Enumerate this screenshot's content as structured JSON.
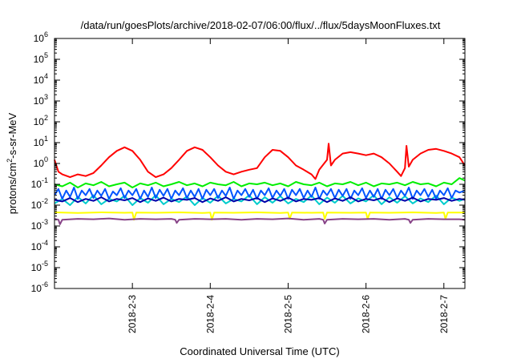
{
  "chart_data": {
    "type": "line",
    "title": "/data/run/goesPlots/archive/2018-02-07/06:00/flux/../flux/5daysMoonFluxes.txt",
    "xlabel": "Coordinated Universal Time (UTC)",
    "ylabel_main": "protons/cm",
    "ylabel_sup": "2",
    "ylabel_rest": "-s-sr-MeV",
    "y_scale": "log",
    "ylim": [
      1e-06,
      1000000
    ],
    "xlim": [
      2.0,
      7.27
    ],
    "grid": false,
    "legend": "none",
    "y_ticks": [
      {
        "value": 1e-06,
        "base": "10",
        "exp": "-6"
      },
      {
        "value": 1e-05,
        "base": "10",
        "exp": "-5"
      },
      {
        "value": 0.0001,
        "base": "10",
        "exp": "-4"
      },
      {
        "value": 0.001,
        "base": "10",
        "exp": "-3"
      },
      {
        "value": 0.01,
        "base": "10",
        "exp": "-2"
      },
      {
        "value": 0.1,
        "base": "10",
        "exp": "-1"
      },
      {
        "value": 1,
        "base": "10",
        "exp": "0"
      },
      {
        "value": 10,
        "base": "10",
        "exp": "1"
      },
      {
        "value": 100,
        "base": "10",
        "exp": "2"
      },
      {
        "value": 1000,
        "base": "10",
        "exp": "3"
      },
      {
        "value": 10000,
        "base": "10",
        "exp": "4"
      },
      {
        "value": 100000,
        "base": "10",
        "exp": "5"
      },
      {
        "value": 1000000,
        "base": "10",
        "exp": "6"
      }
    ],
    "x_ticks": [
      {
        "value": 3,
        "label": "2018-2-3"
      },
      {
        "value": 4,
        "label": "2018-2-4"
      },
      {
        "value": 5,
        "label": "2018-2-5"
      },
      {
        "value": 6,
        "label": "2018-2-6"
      },
      {
        "value": 7,
        "label": "2018-2-7"
      }
    ],
    "series": [
      {
        "color": "#ff0000",
        "x": [
          2.0,
          2.05,
          2.1,
          2.2,
          2.3,
          2.4,
          2.5,
          2.6,
          2.7,
          2.8,
          2.9,
          3.0,
          3.1,
          3.2,
          3.3,
          3.4,
          3.5,
          3.6,
          3.7,
          3.8,
          3.9,
          4.0,
          4.1,
          4.2,
          4.3,
          4.4,
          4.5,
          4.6,
          4.7,
          4.8,
          4.9,
          5.0,
          5.1,
          5.2,
          5.3,
          5.35,
          5.4,
          5.5,
          5.52,
          5.55,
          5.6,
          5.7,
          5.8,
          5.9,
          6.0,
          6.1,
          6.2,
          6.3,
          6.4,
          6.45,
          6.5,
          6.52,
          6.55,
          6.6,
          6.7,
          6.8,
          6.9,
          7.0,
          7.1,
          7.2,
          7.27
        ],
        "y": [
          1.5,
          0.4,
          0.3,
          0.22,
          0.3,
          0.25,
          0.35,
          0.8,
          2.0,
          4.0,
          6.0,
          4.0,
          1.5,
          0.4,
          0.22,
          0.3,
          0.6,
          1.5,
          4.0,
          6.0,
          4.5,
          2.0,
          0.8,
          0.4,
          0.3,
          0.4,
          0.5,
          0.6,
          2.0,
          4.5,
          4.0,
          2.0,
          0.8,
          0.5,
          0.3,
          0.18,
          0.5,
          1.5,
          9.0,
          0.8,
          1.5,
          3.0,
          3.5,
          3.0,
          2.5,
          3.0,
          2.0,
          1.0,
          0.4,
          0.25,
          0.6,
          7.0,
          0.7,
          1.5,
          3.0,
          4.5,
          5.0,
          4.0,
          3.0,
          2.0,
          0.8
        ]
      },
      {
        "color": "#00ee00",
        "x": [
          2.0,
          2.1,
          2.2,
          2.3,
          2.4,
          2.5,
          2.6,
          2.7,
          2.8,
          2.9,
          3.0,
          3.1,
          3.2,
          3.3,
          3.4,
          3.5,
          3.6,
          3.7,
          3.8,
          3.9,
          4.0,
          4.1,
          4.2,
          4.3,
          4.4,
          4.5,
          4.6,
          4.7,
          4.8,
          4.9,
          5.0,
          5.1,
          5.2,
          5.3,
          5.4,
          5.5,
          5.6,
          5.7,
          5.8,
          5.9,
          6.0,
          6.1,
          6.2,
          6.3,
          6.4,
          6.5,
          6.6,
          6.7,
          6.8,
          6.9,
          7.0,
          7.1,
          7.2,
          7.27
        ],
        "y": [
          0.1,
          0.08,
          0.12,
          0.07,
          0.11,
          0.09,
          0.13,
          0.08,
          0.1,
          0.12,
          0.07,
          0.11,
          0.09,
          0.12,
          0.08,
          0.1,
          0.13,
          0.09,
          0.11,
          0.08,
          0.12,
          0.1,
          0.09,
          0.13,
          0.08,
          0.11,
          0.1,
          0.12,
          0.09,
          0.11,
          0.08,
          0.13,
          0.1,
          0.09,
          0.12,
          0.08,
          0.11,
          0.1,
          0.13,
          0.09,
          0.12,
          0.08,
          0.11,
          0.1,
          0.12,
          0.09,
          0.13,
          0.1,
          0.11,
          0.08,
          0.12,
          0.1,
          0.2,
          0.15
        ]
      },
      {
        "color": "#00cccc",
        "x": [
          2.0,
          2.1,
          2.2,
          2.3,
          2.4,
          2.5,
          2.6,
          2.7,
          2.8,
          2.9,
          3.0,
          3.1,
          3.2,
          3.3,
          3.4,
          3.5,
          3.6,
          3.7,
          3.8,
          3.9,
          4.0,
          4.1,
          4.2,
          4.3,
          4.4,
          4.5,
          4.6,
          4.7,
          4.8,
          4.9,
          5.0,
          5.1,
          5.2,
          5.3,
          5.4,
          5.5,
          5.6,
          5.7,
          5.8,
          5.9,
          6.0,
          6.1,
          6.2,
          6.3,
          6.4,
          6.5,
          6.6,
          6.7,
          6.8,
          6.9,
          7.0,
          7.1,
          7.2,
          7.27
        ],
        "y": [
          0.012,
          0.02,
          0.01,
          0.025,
          0.012,
          0.03,
          0.011,
          0.02,
          0.015,
          0.028,
          0.01,
          0.022,
          0.013,
          0.03,
          0.011,
          0.02,
          0.014,
          0.026,
          0.01,
          0.022,
          0.013,
          0.028,
          0.012,
          0.02,
          0.015,
          0.03,
          0.011,
          0.024,
          0.013,
          0.027,
          0.012,
          0.02,
          0.014,
          0.029,
          0.011,
          0.023,
          0.013,
          0.028,
          0.012,
          0.021,
          0.015,
          0.03,
          0.011,
          0.024,
          0.013,
          0.027,
          0.012,
          0.021,
          0.014,
          0.029,
          0.011,
          0.023,
          0.016,
          0.02
        ]
      },
      {
        "color": "#0055ff",
        "x": [
          2.0,
          2.05,
          2.1,
          2.15,
          2.2,
          2.25,
          2.3,
          2.35,
          2.4,
          2.45,
          2.5,
          2.55,
          2.6,
          2.65,
          2.7,
          2.75,
          2.8,
          2.85,
          2.9,
          2.95,
          3.0,
          3.05,
          3.1,
          3.15,
          3.2,
          3.25,
          3.3,
          3.35,
          3.4,
          3.45,
          3.5,
          3.55,
          3.6,
          3.65,
          3.7,
          3.75,
          3.8,
          3.85,
          3.9,
          3.95,
          4.0,
          4.05,
          4.1,
          4.15,
          4.2,
          4.25,
          4.3,
          4.35,
          4.4,
          4.45,
          4.5,
          4.55,
          4.6,
          4.65,
          4.7,
          4.75,
          4.8,
          4.85,
          4.9,
          4.95,
          5.0,
          5.05,
          5.1,
          5.15,
          5.2,
          5.25,
          5.3,
          5.35,
          5.4,
          5.45,
          5.5,
          5.55,
          5.6,
          5.65,
          5.7,
          5.75,
          5.8,
          5.85,
          5.9,
          5.95,
          6.0,
          6.05,
          6.1,
          6.15,
          6.2,
          6.25,
          6.3,
          6.35,
          6.4,
          6.45,
          6.5,
          6.55,
          6.6,
          6.65,
          6.7,
          6.75,
          6.8,
          6.85,
          6.9,
          6.95,
          7.0,
          7.05,
          7.1,
          7.15,
          7.2,
          7.27
        ],
        "y": [
          0.03,
          0.06,
          0.02,
          0.05,
          0.025,
          0.07,
          0.02,
          0.05,
          0.03,
          0.06,
          0.022,
          0.05,
          0.028,
          0.06,
          0.02,
          0.045,
          0.03,
          0.065,
          0.022,
          0.05,
          0.03,
          0.06,
          0.02,
          0.05,
          0.025,
          0.07,
          0.022,
          0.055,
          0.028,
          0.06,
          0.02,
          0.05,
          0.03,
          0.065,
          0.022,
          0.05,
          0.025,
          0.06,
          0.02,
          0.055,
          0.03,
          0.06,
          0.022,
          0.05,
          0.028,
          0.07,
          0.02,
          0.05,
          0.03,
          0.06,
          0.025,
          0.055,
          0.02,
          0.05,
          0.03,
          0.065,
          0.022,
          0.05,
          0.028,
          0.06,
          0.02,
          0.055,
          0.03,
          0.06,
          0.022,
          0.05,
          0.025,
          0.07,
          0.02,
          0.05,
          0.03,
          0.06,
          0.022,
          0.055,
          0.028,
          0.06,
          0.02,
          0.05,
          0.03,
          0.065,
          0.022,
          0.05,
          0.025,
          0.06,
          0.02,
          0.055,
          0.03,
          0.06,
          0.022,
          0.05,
          0.028,
          0.07,
          0.02,
          0.05,
          0.03,
          0.06,
          0.025,
          0.055,
          0.02,
          0.05,
          0.03,
          0.065,
          0.022,
          0.05,
          0.04,
          0.05
        ]
      },
      {
        "color": "#0000aa",
        "x": [
          2.0,
          2.1,
          2.2,
          2.3,
          2.4,
          2.5,
          2.6,
          2.7,
          2.8,
          2.9,
          3.0,
          3.1,
          3.2,
          3.3,
          3.4,
          3.5,
          3.6,
          3.7,
          3.8,
          3.9,
          4.0,
          4.1,
          4.2,
          4.3,
          4.4,
          4.5,
          4.6,
          4.7,
          4.8,
          4.9,
          5.0,
          5.1,
          5.2,
          5.3,
          5.4,
          5.5,
          5.6,
          5.7,
          5.8,
          5.9,
          6.0,
          6.1,
          6.2,
          6.3,
          6.4,
          6.5,
          6.6,
          6.7,
          6.8,
          6.9,
          7.0,
          7.1,
          7.2,
          7.27
        ],
        "y": [
          0.018,
          0.015,
          0.022,
          0.014,
          0.02,
          0.016,
          0.024,
          0.015,
          0.02,
          0.017,
          0.022,
          0.014,
          0.021,
          0.016,
          0.023,
          0.015,
          0.02,
          0.018,
          0.022,
          0.014,
          0.021,
          0.016,
          0.024,
          0.015,
          0.02,
          0.017,
          0.022,
          0.014,
          0.021,
          0.016,
          0.023,
          0.015,
          0.02,
          0.018,
          0.022,
          0.014,
          0.021,
          0.016,
          0.024,
          0.015,
          0.02,
          0.017,
          0.022,
          0.014,
          0.021,
          0.016,
          0.023,
          0.015,
          0.02,
          0.018,
          0.022,
          0.016,
          0.02,
          0.018
        ]
      },
      {
        "color": "#ffff00",
        "x": [
          2.0,
          2.3,
          2.6,
          2.9,
          3.0,
          3.02,
          3.05,
          3.3,
          3.6,
          3.9,
          4.0,
          4.02,
          4.05,
          4.3,
          4.6,
          4.9,
          5.0,
          5.02,
          5.05,
          5.3,
          5.45,
          5.47,
          5.5,
          5.8,
          6.0,
          6.02,
          6.05,
          6.3,
          6.6,
          6.9,
          7.0,
          7.02,
          7.05,
          7.27
        ],
        "y": [
          0.0045,
          0.0042,
          0.0045,
          0.0043,
          0.0044,
          0.002,
          0.0044,
          0.0043,
          0.0045,
          0.0042,
          0.0044,
          0.002,
          0.0044,
          0.0043,
          0.0045,
          0.0042,
          0.0044,
          0.0022,
          0.0044,
          0.0043,
          0.0044,
          0.0022,
          0.0044,
          0.0043,
          0.0044,
          0.0022,
          0.0044,
          0.0043,
          0.0045,
          0.0042,
          0.0044,
          0.0022,
          0.0044,
          0.0044
        ]
      },
      {
        "color": "#884488",
        "x": [
          2.0,
          2.05,
          2.07,
          2.1,
          2.3,
          2.5,
          2.7,
          2.9,
          3.1,
          3.3,
          3.5,
          3.55,
          3.57,
          3.6,
          3.8,
          4.0,
          4.2,
          4.4,
          4.6,
          4.8,
          5.0,
          5.2,
          5.4,
          5.45,
          5.47,
          5.5,
          5.7,
          5.9,
          6.1,
          6.3,
          6.5,
          6.55,
          6.57,
          6.6,
          6.8,
          7.0,
          7.2,
          7.27
        ],
        "y": [
          0.0022,
          0.002,
          0.0012,
          0.002,
          0.0022,
          0.0021,
          0.0023,
          0.002,
          0.0022,
          0.0021,
          0.0022,
          0.002,
          0.0014,
          0.002,
          0.0022,
          0.0021,
          0.0022,
          0.002,
          0.0022,
          0.0021,
          0.0023,
          0.002,
          0.0022,
          0.002,
          0.0013,
          0.002,
          0.0022,
          0.0021,
          0.0022,
          0.002,
          0.0022,
          0.002,
          0.0014,
          0.002,
          0.0022,
          0.0021,
          0.0021,
          0.002
        ]
      }
    ]
  }
}
